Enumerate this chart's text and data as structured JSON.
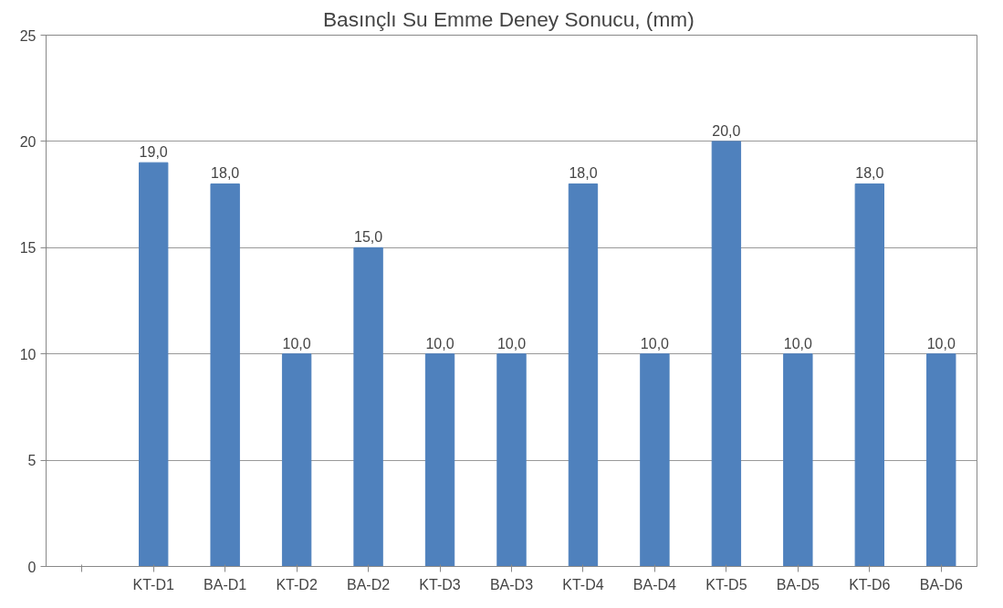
{
  "chart_data": {
    "type": "bar",
    "title": "Basınçlı Su Emme  Deney Sonucu, (mm)",
    "categories": [
      null,
      "KT-D1",
      "BA-D1",
      "KT-D2",
      "BA-D2",
      "KT-D3",
      "BA-D3",
      "KT-D4",
      "BA-D4",
      "KT-D5",
      "BA-D5",
      "KT-D6",
      "BA-D6"
    ],
    "values": [
      null,
      19,
      18,
      10,
      15,
      10,
      10,
      18,
      10,
      20,
      10,
      18,
      10
    ],
    "value_labels": [
      null,
      "19,0",
      "18,0",
      "10,0",
      "15,0",
      "10,0",
      "10,0",
      "18,0",
      "10,0",
      "20,0",
      "10,0",
      "18,0",
      "10,0"
    ],
    "color": "#4f81bd",
    "ylim": [
      0,
      25
    ],
    "yticks": [
      0,
      5,
      10,
      15,
      20,
      25
    ],
    "grid": "y"
  }
}
